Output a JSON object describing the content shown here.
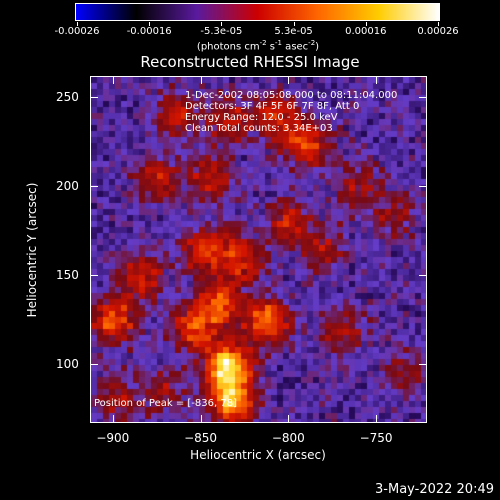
{
  "colorbar": {
    "tick_labels": [
      "-0.00026",
      "-0.00016",
      "-5.3e-05",
      "5.3e-05",
      "0.00016",
      "0.00026"
    ],
    "units_text": "(photons cm",
    "units_exp1": "-2",
    "units_mid": " s",
    "units_exp2": "-1",
    "units_mid2": " asec",
    "units_exp3": "-2",
    "units_end": ")",
    "colors": [
      "#0000ff",
      "#000000",
      "#5a1a9e",
      "#cc0000",
      "#ff6600",
      "#ffcc00",
      "#ffffff"
    ]
  },
  "chart_data": {
    "type": "heatmap",
    "title": "Reconstructed RHESSI Image",
    "xlabel": "Heliocentric X (arcsec)",
    "ylabel": "Heliocentric Y (arcsec)",
    "xlim": [
      -913,
      -721
    ],
    "ylim": [
      67,
      262
    ],
    "xticks": [
      -900,
      -850,
      -800,
      -750
    ],
    "yticks": [
      100,
      150,
      200,
      250
    ],
    "color_range": [
      -0.00026,
      0.00026
    ],
    "sources": [
      {
        "x": -835,
        "y": 100,
        "amp": 0.00026
      },
      {
        "x": -833,
        "y": 80,
        "amp": 0.00024
      },
      {
        "x": -840,
        "y": 135,
        "amp": 0.00018
      },
      {
        "x": -812,
        "y": 125,
        "amp": 0.0002
      },
      {
        "x": -855,
        "y": 120,
        "amp": 0.00016
      },
      {
        "x": -900,
        "y": 125,
        "amp": 0.00018
      },
      {
        "x": -885,
        "y": 150,
        "amp": 0.00014
      },
      {
        "x": -848,
        "y": 165,
        "amp": 0.00016
      },
      {
        "x": -828,
        "y": 160,
        "amp": 0.00014
      },
      {
        "x": -800,
        "y": 180,
        "amp": 0.00012
      },
      {
        "x": -790,
        "y": 225,
        "amp": 0.00016
      },
      {
        "x": -808,
        "y": 240,
        "amp": 0.00014
      },
      {
        "x": -835,
        "y": 238,
        "amp": 0.00012
      },
      {
        "x": -865,
        "y": 240,
        "amp": 0.00012
      },
      {
        "x": -875,
        "y": 205,
        "amp": 0.00012
      },
      {
        "x": -760,
        "y": 200,
        "amp": 0.0001
      },
      {
        "x": -780,
        "y": 165,
        "amp": 0.0001
      },
      {
        "x": -770,
        "y": 120,
        "amp": 0.0001
      },
      {
        "x": -735,
        "y": 95,
        "amp": 8e-05
      },
      {
        "x": -740,
        "y": 185,
        "amp": 8e-05
      },
      {
        "x": -898,
        "y": 80,
        "amp": 0.0001
      },
      {
        "x": -870,
        "y": 85,
        "amp": 9e-05
      },
      {
        "x": -845,
        "y": 205,
        "amp": 0.00012
      }
    ],
    "background_level": -4e-05
  },
  "info": {
    "line1": "1-Dec-2002 08:05:08.000 to 08:11:04.000",
    "line2": "Detectors: 3F 4F 5F 6F 7F 8F, Att 0",
    "line3": "Energy Range: 12.0 - 25.0 keV",
    "line4": "Clean     Total counts: 3.34E+03",
    "peak": "Position of Peak = [-836, 78]"
  },
  "timestamp": "3-May-2022 20:49"
}
